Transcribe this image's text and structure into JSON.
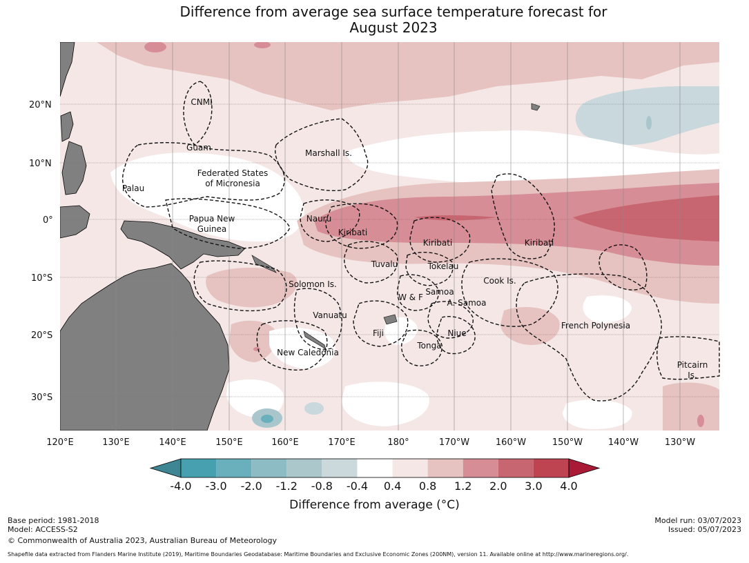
{
  "title": {
    "line1": "Difference from average sea surface temperature forecast for",
    "line2": "August 2023"
  },
  "map": {
    "latitude_labels": [
      "20°N",
      "10°N",
      "0°",
      "10°S",
      "20°S",
      "30°S"
    ],
    "longitude_labels": [
      "120°E",
      "130°E",
      "140°E",
      "150°E",
      "160°E",
      "170°E",
      "180°",
      "170°W",
      "160°W",
      "150°W",
      "140°W",
      "130°W"
    ],
    "region_labels": [
      "CNMI",
      "Guam",
      "Marshall Is.",
      "Federated States",
      "of Micronesia",
      "Palau",
      "Papua New",
      "Guinea",
      "Nauru",
      "Kiribati",
      "Kiribati",
      "Kiribati",
      "Tuvalu",
      "Tokelau",
      "Solomon Is.",
      "Samoa",
      "W & F",
      "A. Samoa",
      "Cook Is.",
      "Vanuatu",
      "Fiji",
      "Niue",
      "Tonga",
      "French Polynesia",
      "New Caledonia",
      "Pitcairn",
      "Is."
    ],
    "colors": {
      "land": "#808080",
      "anom_warm_0_4": "#f4e7e6",
      "anom_warm_0_8": "#e6c3c1",
      "anom_warm_1_2": "#d68d95",
      "anom_warm_2_0": "#c76671",
      "anom_cool_0_4": "#c9d8dc",
      "anom_cool_0_8": "#a8c6cb"
    }
  },
  "colorbar": {
    "ticks": [
      "-4.0",
      "-3.0",
      "-2.0",
      "-1.2",
      "-0.8",
      "-0.4",
      "0.4",
      "0.8",
      "1.2",
      "2.0",
      "3.0",
      "4.0"
    ],
    "colors": [
      "#3f8694",
      "#47a0b0",
      "#6aafbc",
      "#8ebcc5",
      "#abc7cc",
      "#cbd9dd",
      "#ffffff",
      "#f4e7e6",
      "#e6c3c1",
      "#d68d95",
      "#c76671",
      "#bf4452",
      "#a81a35"
    ],
    "title": "Difference from average ($^\\circ$C)",
    "title_display": "Difference from average (°C)"
  },
  "footer": {
    "base_period": "Base period: 1981-2018",
    "model": "Model: ACCESS-S2",
    "copyright": "© Commonwealth of Australia 2023, Australian Bureau of Meteorology",
    "model_run": "Model run: 03/07/2023",
    "issued": "Issued: 05/07/2023",
    "shapefile": "Shapefile data extracted from Flanders Marine Institute (2019), Maritime Boundaries Geodatabase: Maritime Boundaries and Exclusive Economic Zones (200NM), version 11. Available online at http://www.marineregions.org/."
  }
}
